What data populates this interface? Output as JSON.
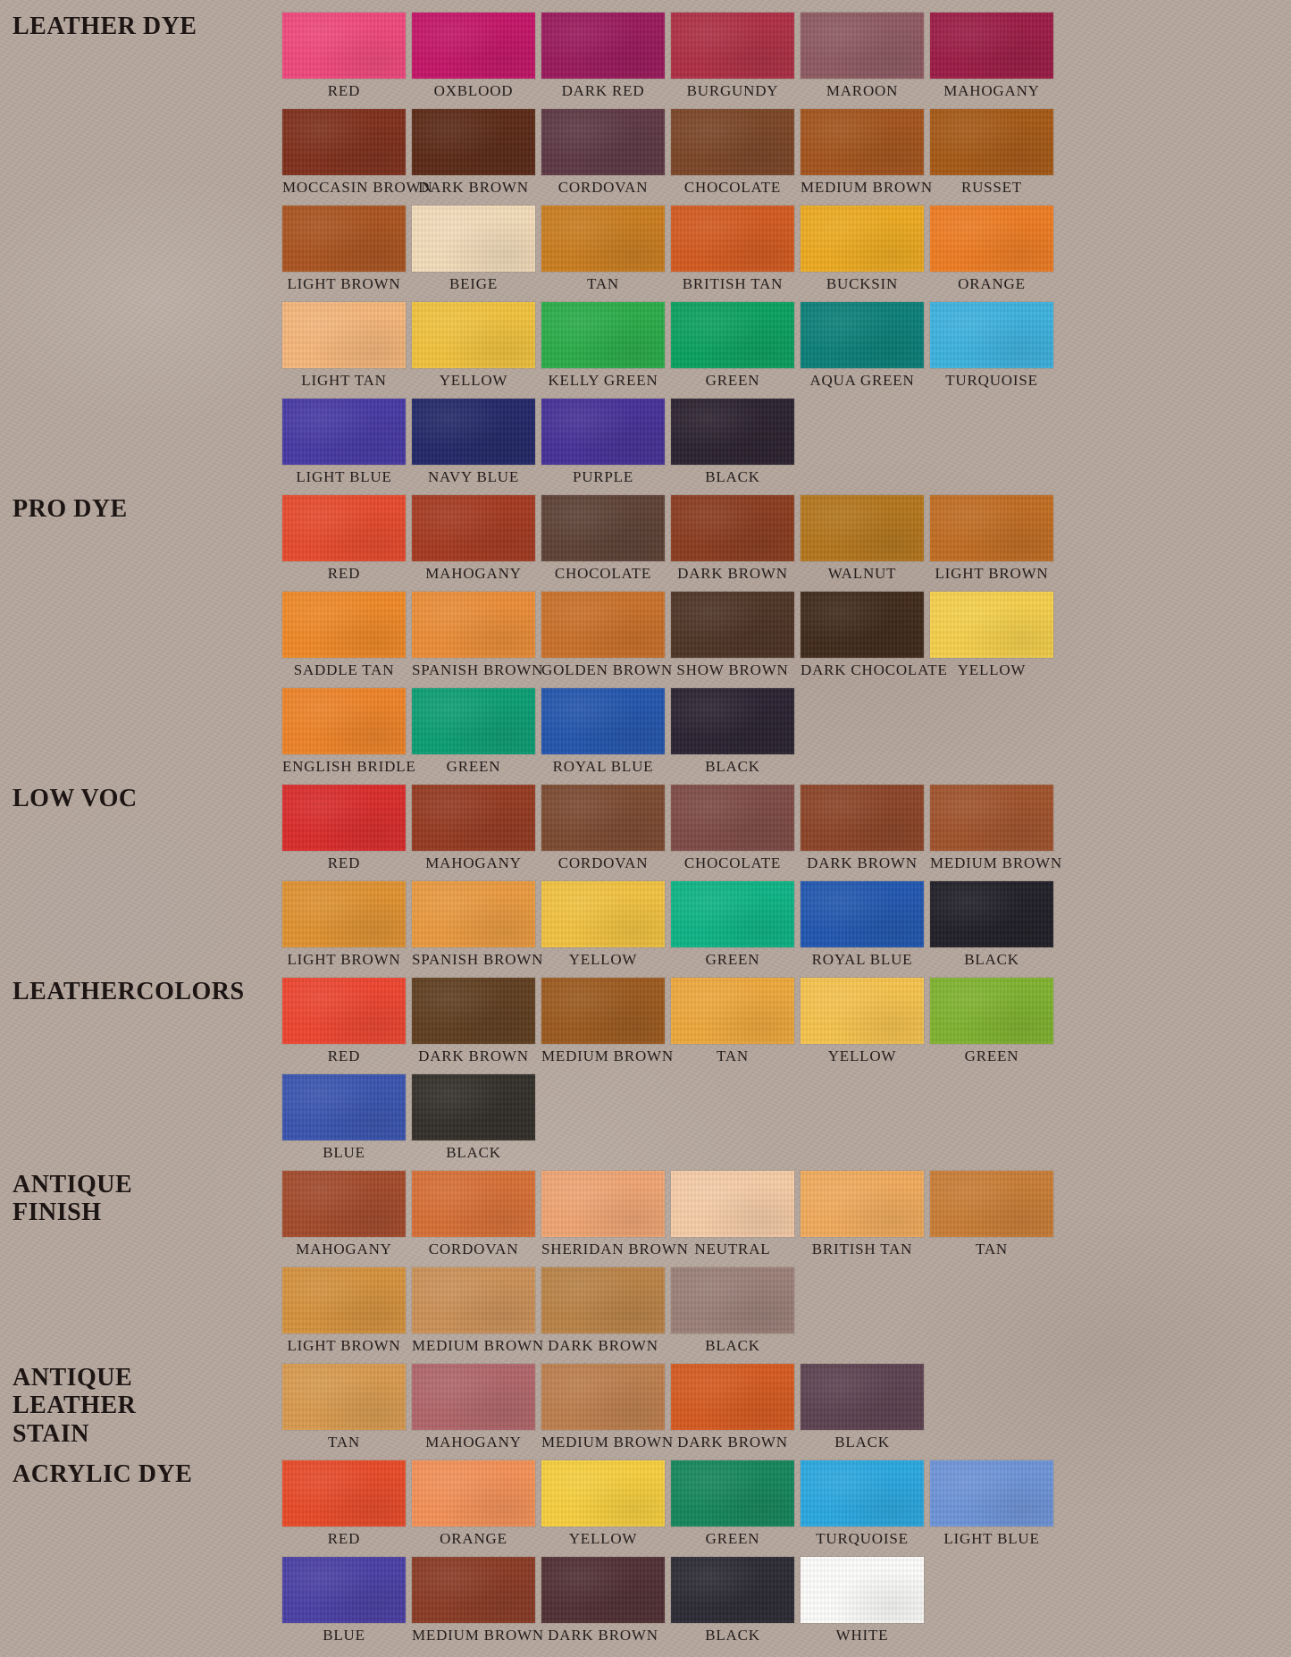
{
  "page": {
    "background_color": "#b4a69c",
    "text_color": "#241d1c"
  },
  "sections": [
    {
      "title": "LEATHER DYE",
      "rows": [
        {
          "swatches": [
            {
              "label": "RED",
              "color": "#f0487d"
            },
            {
              "label": "OXBLOOD",
              "color": "#c41569"
            },
            {
              "label": "DARK RED",
              "color": "#9a1a5c"
            },
            {
              "label": "BURGUNDY",
              "color": "#ae2f45"
            },
            {
              "label": "MAROON",
              "color": "#8e5a62"
            },
            {
              "label": "MAHOGANY",
              "color": "#9c1c46"
            }
          ]
        },
        {
          "swatches": [
            {
              "label": "MOCCASIN BROWN",
              "color": "#7f301c"
            },
            {
              "label": "DARK BROWN",
              "color": "#5b2a17"
            },
            {
              "label": "CORDOVAN",
              "color": "#5d3844"
            },
            {
              "label": "CHOCOLATE",
              "color": "#7b4527"
            },
            {
              "label": "MEDIUM BROWN",
              "color": "#a4541d"
            },
            {
              "label": "RUSSET",
              "color": "#a65916"
            }
          ]
        },
        {
          "swatches": [
            {
              "label": "LIGHT BROWN",
              "color": "#aa5420"
            },
            {
              "label": "BEIGE",
              "color": "#f3dcba"
            },
            {
              "label": "TAN",
              "color": "#ca7d1f"
            },
            {
              "label": "BRITISH TAN",
              "color": "#d35a20"
            },
            {
              "label": "BUCKSIN",
              "color": "#edaa20"
            },
            {
              "label": "ORANGE",
              "color": "#ee7c23"
            }
          ]
        },
        {
          "swatches": [
            {
              "label": "LIGHT TAN",
              "color": "#f6b67b"
            },
            {
              "label": "YELLOW",
              "color": "#f1c33d"
            },
            {
              "label": "KELLY GREEN",
              "color": "#2aac48"
            },
            {
              "label": "GREEN",
              "color": "#0ba15f"
            },
            {
              "label": "AQUA GREEN",
              "color": "#0b7f78"
            },
            {
              "label": "TURQUOISE",
              "color": "#3db2df"
            }
          ]
        },
        {
          "swatches": [
            {
              "label": "LIGHT BLUE",
              "color": "#4739a4"
            },
            {
              "label": "NAVY BLUE",
              "color": "#232868"
            },
            {
              "label": "PURPLE",
              "color": "#453197"
            },
            {
              "label": "BLACK",
              "color": "#2b2230"
            }
          ]
        }
      ]
    },
    {
      "title": "PRO DYE",
      "rows": [
        {
          "swatches": [
            {
              "label": "RED",
              "color": "#e74a2d"
            },
            {
              "label": "MAHOGANY",
              "color": "#a53a21"
            },
            {
              "label": "CHOCOLATE",
              "color": "#5d4136"
            },
            {
              "label": "DARK BROWN",
              "color": "#8a3c1f"
            },
            {
              "label": "WALNUT",
              "color": "#b4761d"
            },
            {
              "label": "LIGHT BROWN",
              "color": "#c16d22"
            }
          ]
        },
        {
          "swatches": [
            {
              "label": "SADDLE TAN",
              "color": "#f08927"
            },
            {
              "label": "SPANISH BROWN",
              "color": "#eb8d37"
            },
            {
              "label": "GOLDEN BROWN",
              "color": "#ca7029"
            },
            {
              "label": "SHOW BROWN",
              "color": "#4e3425"
            },
            {
              "label": "DARK CHOCOLATE",
              "color": "#402a1b"
            },
            {
              "label": "YELLOW",
              "color": "#f6d04b"
            }
          ]
        },
        {
          "swatches": [
            {
              "label": "ENGLISH BRIDLE",
              "color": "#ee8328"
            },
            {
              "label": "GREEN",
              "color": "#0c9e73"
            },
            {
              "label": "ROYAL BLUE",
              "color": "#2355ad"
            },
            {
              "label": "BLACK",
              "color": "#2a2231"
            }
          ]
        }
      ]
    },
    {
      "title": "LOW VOC",
      "rows": [
        {
          "swatches": [
            {
              "label": "RED",
              "color": "#da2c2b"
            },
            {
              "label": "MAHOGANY",
              "color": "#953a21"
            },
            {
              "label": "CORDOVAN",
              "color": "#7b4a31"
            },
            {
              "label": "CHOCOLATE",
              "color": "#7e4b46"
            },
            {
              "label": "DARK BROWN",
              "color": "#8c4428"
            },
            {
              "label": "MEDIUM BROWN",
              "color": "#a0532c"
            }
          ]
        },
        {
          "swatches": [
            {
              "label": "LIGHT BROWN",
              "color": "#e09231"
            },
            {
              "label": "SPANISH BROWN",
              "color": "#ea9a3f"
            },
            {
              "label": "YELLOW",
              "color": "#f2c340"
            },
            {
              "label": "GREEN",
              "color": "#0db486"
            },
            {
              "label": "ROYAL BLUE",
              "color": "#2157b0"
            },
            {
              "label": "BLACK",
              "color": "#211f27"
            }
          ]
        }
      ]
    },
    {
      "title": "LEATHERCOLORS",
      "rows": [
        {
          "swatches": [
            {
              "label": "RED",
              "color": "#ed4530"
            },
            {
              "label": "DARK BROWN",
              "color": "#5f3e20"
            },
            {
              "label": "MEDIUM BROWN",
              "color": "#9c5a1f"
            },
            {
              "label": "TAN",
              "color": "#eea83c"
            },
            {
              "label": "YELLOW",
              "color": "#f6c34d"
            },
            {
              "label": "GREEN",
              "color": "#7fb32f"
            }
          ]
        },
        {
          "swatches": [
            {
              "label": "BLUE",
              "color": "#3a55af"
            },
            {
              "label": "BLACK",
              "color": "#332f29"
            }
          ]
        }
      ]
    },
    {
      "title": "ANTIQUE\nFINISH",
      "rows": [
        {
          "swatches": [
            {
              "label": "MAHOGANY",
              "color": "#a34a2b"
            },
            {
              "label": "CORDOVAN",
              "color": "#d76f36"
            },
            {
              "label": "SHERIDAN BROWN",
              "color": "#efa573"
            },
            {
              "label": "NEUTRAL",
              "color": "#f6cca8"
            },
            {
              "label": "BRITISH TAN",
              "color": "#f1ab5c"
            },
            {
              "label": "TAN",
              "color": "#c97d36"
            }
          ]
        },
        {
          "swatches": [
            {
              "label": "LIGHT BROWN",
              "color": "#d5923d"
            },
            {
              "label": "MEDIUM BROWN",
              "color": "#cb9158"
            },
            {
              "label": "DARK BROWN",
              "color": "#ba8347"
            },
            {
              "label": "BLACK",
              "color": "#9b8078"
            }
          ]
        }
      ]
    },
    {
      "title": "ANTIQUE\nLEATHER\nSTAIN",
      "rows": [
        {
          "swatches": [
            {
              "label": "TAN",
              "color": "#d99b50"
            },
            {
              "label": "MAHOGANY",
              "color": "#b1666b"
            },
            {
              "label": "MEDIUM BROWN",
              "color": "#bd7f4e"
            },
            {
              "label": "DARK BROWN",
              "color": "#d65a20"
            },
            {
              "label": "BLACK",
              "color": "#5d4251"
            }
          ]
        }
      ]
    },
    {
      "title": "ACRYLIC DYE",
      "rows": [
        {
          "swatches": [
            {
              "label": "RED",
              "color": "#e84a28"
            },
            {
              "label": "ORANGE",
              "color": "#f49158"
            },
            {
              "label": "YELLOW",
              "color": "#f7cf3e"
            },
            {
              "label": "GREEN",
              "color": "#15875c"
            },
            {
              "label": "TURQUOISE",
              "color": "#2aa8e0"
            },
            {
              "label": "LIGHT BLUE",
              "color": "#6e94d8"
            }
          ]
        },
        {
          "swatches": [
            {
              "label": "BLUE",
              "color": "#4a3fa4"
            },
            {
              "label": "MEDIUM BROWN",
              "color": "#8a3b25"
            },
            {
              "label": "DARK BROWN",
              "color": "#513034"
            },
            {
              "label": "BLACK",
              "color": "#2c2a34"
            },
            {
              "label": "WHITE",
              "color": "#fdfdfc"
            }
          ]
        }
      ]
    }
  ]
}
